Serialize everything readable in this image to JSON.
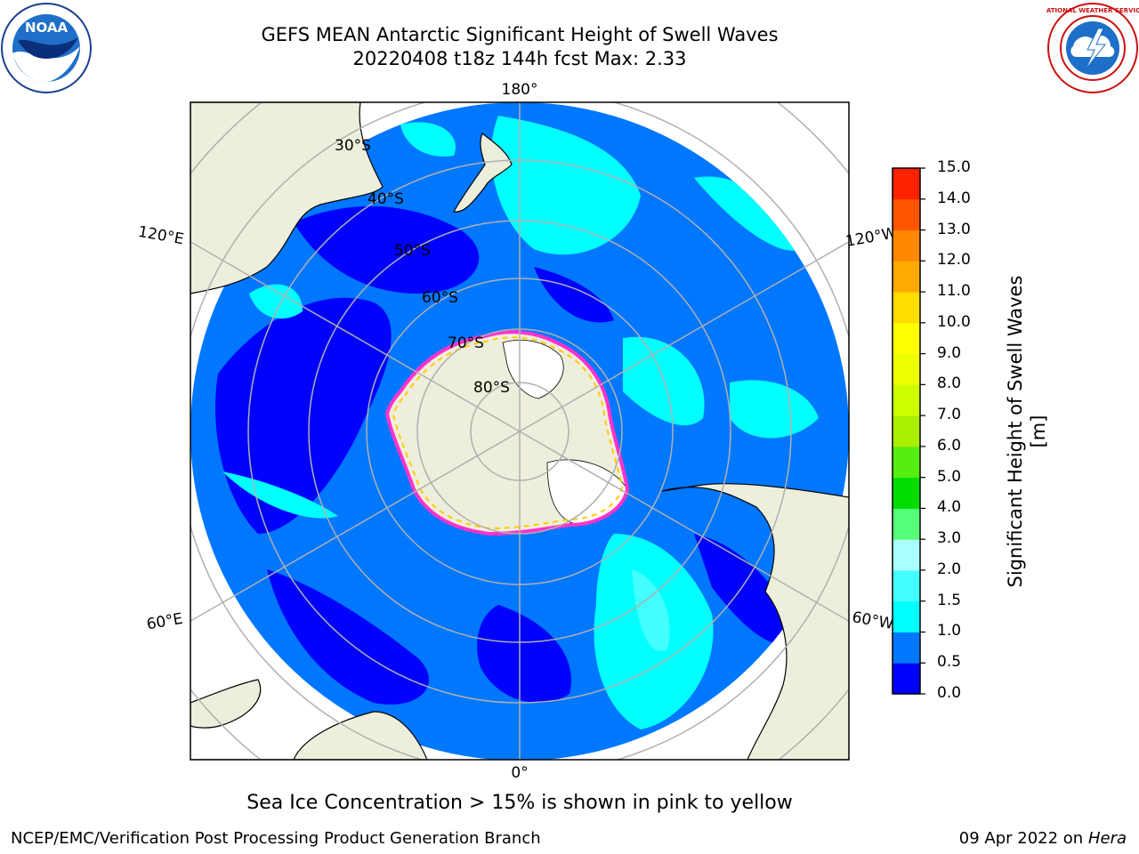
{
  "header": {
    "title_line1": "GEFS MEAN Antarctic Significant Height of Swell Waves",
    "title_line2": "20220408 t18z 144h fcst   Max: 2.33"
  },
  "map": {
    "projection": "south-polar-stereographic",
    "lat_labels": [
      "30°S",
      "40°S",
      "50°S",
      "60°S",
      "70°S",
      "80°S"
    ],
    "lon_labels": {
      "top": "180°",
      "bottom": "0°",
      "upper_left": "120°E",
      "upper_right": "120°W",
      "lower_left": "60°E",
      "lower_right": "60°W"
    },
    "colors": {
      "ocean_low": "#0000ff",
      "ocean_mid": "#0077ff",
      "ocean_high": "#00ffff",
      "land": "#eeeedc",
      "grid": "#b0b0b0",
      "ice_pink": "#ff33cc",
      "ice_yellow": "#ffcc00"
    }
  },
  "colorbar": {
    "title": "Significant Height of Swell Waves [m]",
    "tick_labels": [
      "0.0",
      "0.5",
      "1.0",
      "1.5",
      "2.0",
      "3.0",
      "4.0",
      "5.0",
      "6.0",
      "7.0",
      "8.0",
      "9.0",
      "10.0",
      "11.0",
      "12.0",
      "13.0",
      "14.0",
      "15.0"
    ],
    "colors": [
      "#0000ff",
      "#0077ff",
      "#00ffff",
      "#44ffff",
      "#aaffff",
      "#55ff77",
      "#00dd00",
      "#55ee11",
      "#aaee00",
      "#ccff00",
      "#eeff00",
      "#ffff00",
      "#ffdd00",
      "#ffaa00",
      "#ff8800",
      "#ff5500",
      "#ff2200"
    ]
  },
  "footer": {
    "note": "Sea Ice Concentration > 15% is shown in pink to yellow",
    "left": "NCEP/EMC/Verification Post Processing Product Generation Branch",
    "right_prefix": "09 Apr 2022 on",
    "right_system": "Hera"
  },
  "logos": {
    "left": {
      "icon": "noaa-logo-icon",
      "text": "NOAA"
    },
    "right": {
      "icon": "nws-logo-icon",
      "text": "NATIONAL WEATHER SERVICE"
    }
  }
}
